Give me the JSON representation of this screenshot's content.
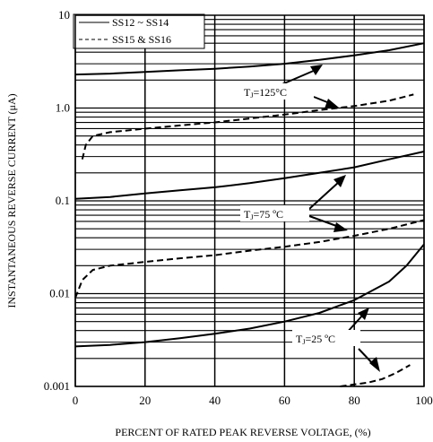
{
  "chart_data": {
    "type": "line",
    "title": "",
    "xlabel": "PERCENT OF RATED PEAK REVERSE VOLTAGE, (%)",
    "ylabel": "INSTANTANEOUS REVERSE CURRENT (μA)",
    "x_scale": "linear",
    "y_scale": "log",
    "xlim": [
      0,
      100
    ],
    "ylim": [
      0.001,
      10
    ],
    "x_ticks": [
      0,
      20,
      40,
      60,
      80,
      100
    ],
    "x_tick_labels": [
      "0",
      "20",
      "40",
      "60",
      "80",
      "100"
    ],
    "y_ticks": [
      0.001,
      0.01,
      0.1,
      1.0,
      10
    ],
    "y_tick_labels": [
      "0.001",
      "0.01",
      "0.1",
      "1.0",
      "10"
    ],
    "grid": true,
    "legend_position": "top-left",
    "legend": [
      {
        "label": "SS12 ~ SS14",
        "style": "solid"
      },
      {
        "label": "SS15 & SS16",
        "style": "dashed"
      }
    ],
    "series": [
      {
        "group": "SS12 ~ SS14",
        "style": "solid",
        "temperature": "125",
        "x": [
          0,
          10,
          20,
          30,
          40,
          50,
          60,
          70,
          80,
          90,
          100
        ],
        "y": [
          2.3,
          2.35,
          2.45,
          2.55,
          2.65,
          2.8,
          3.0,
          3.3,
          3.7,
          4.2,
          5.0
        ]
      },
      {
        "group": "SS15 & SS16",
        "style": "dashed",
        "temperature": "125",
        "x": [
          2,
          3,
          5,
          10,
          20,
          30,
          40,
          50,
          60,
          70,
          80,
          90,
          97
        ],
        "y": [
          0.28,
          0.4,
          0.5,
          0.55,
          0.6,
          0.65,
          0.7,
          0.77,
          0.85,
          0.95,
          1.05,
          1.2,
          1.4
        ]
      },
      {
        "group": "SS12 ~ SS14",
        "style": "solid",
        "temperature": "75",
        "x": [
          0,
          10,
          20,
          30,
          40,
          50,
          60,
          70,
          80,
          90,
          100
        ],
        "y": [
          0.105,
          0.11,
          0.12,
          0.13,
          0.14,
          0.155,
          0.175,
          0.2,
          0.23,
          0.28,
          0.34
        ]
      },
      {
        "group": "SS15 & SS16",
        "style": "dashed",
        "temperature": "75",
        "x": [
          0,
          2,
          5,
          10,
          20,
          30,
          40,
          50,
          60,
          70,
          80,
          90,
          100
        ],
        "y": [
          0.009,
          0.014,
          0.018,
          0.02,
          0.022,
          0.024,
          0.026,
          0.029,
          0.032,
          0.036,
          0.042,
          0.05,
          0.062
        ]
      },
      {
        "group": "SS12 ~ SS14",
        "style": "solid",
        "temperature": "25",
        "x": [
          0,
          10,
          20,
          30,
          40,
          50,
          60,
          70,
          80,
          90,
          95,
          100
        ],
        "y": [
          0.0027,
          0.0028,
          0.003,
          0.0033,
          0.0037,
          0.0042,
          0.005,
          0.0062,
          0.0085,
          0.0135,
          0.02,
          0.034
        ]
      },
      {
        "group": "SS15 & SS16",
        "style": "dashed",
        "temperature": "25",
        "x": [
          76,
          80,
          84,
          88,
          92,
          96
        ],
        "y": [
          0.001,
          0.00105,
          0.0011,
          0.0012,
          0.0014,
          0.0017
        ]
      }
    ],
    "annotations": [
      {
        "subscript": "J",
        "text": "=125°C"
      },
      {
        "subscript": "J",
        "text": "=75 ºC"
      },
      {
        "subscript": "J",
        "text": "=25 ºC"
      }
    ]
  }
}
